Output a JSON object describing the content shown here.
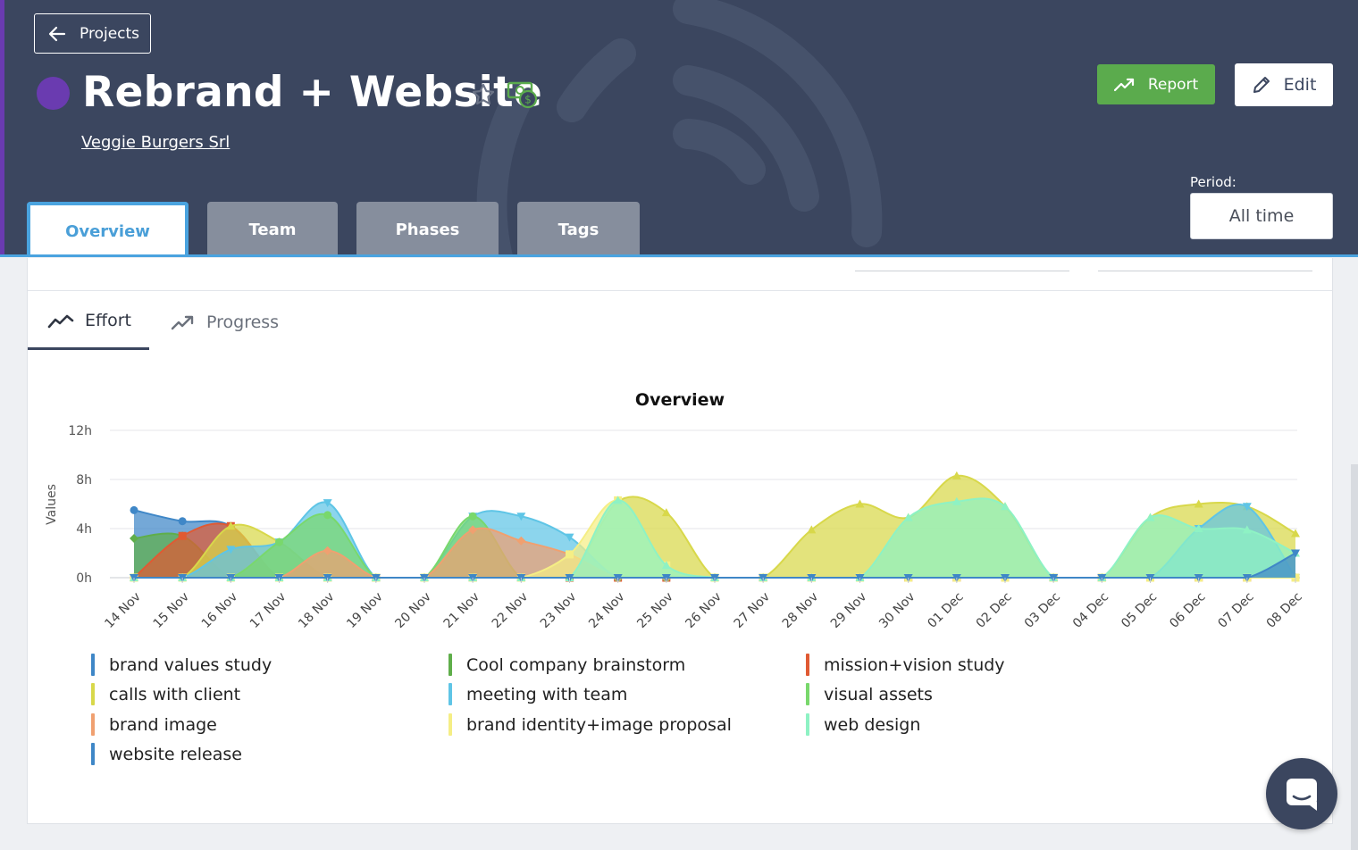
{
  "header": {
    "back_label": "Projects",
    "project_title": "Rebrand + Website",
    "client": "Veggie Burgers Srl",
    "report_label": "Report",
    "edit_label": "Edit",
    "period_label": "Period:",
    "period_value": "All time",
    "project_color": "#6a3bb0"
  },
  "tabs": [
    {
      "label": "Overview",
      "active": true
    },
    {
      "label": "Team",
      "active": false
    },
    {
      "label": "Phases",
      "active": false
    },
    {
      "label": "Tags",
      "active": false
    }
  ],
  "subtabs": [
    {
      "label": "Effort",
      "active": true,
      "icon": "trend-line-icon"
    },
    {
      "label": "Progress",
      "active": false,
      "icon": "trend-arrow-icon"
    }
  ],
  "chart_data": {
    "type": "area",
    "title": "Overview",
    "ylabel": "Values",
    "xlabel": "",
    "y_ticks": [
      "0h",
      "4h",
      "8h",
      "12h"
    ],
    "ylim": [
      0,
      12
    ],
    "categories": [
      "14 Nov",
      "15 Nov",
      "16 Nov",
      "17 Nov",
      "18 Nov",
      "19 Nov",
      "20 Nov",
      "21 Nov",
      "22 Nov",
      "23 Nov",
      "24 Nov",
      "25 Nov",
      "26 Nov",
      "27 Nov",
      "28 Nov",
      "29 Nov",
      "30 Nov",
      "01 Dec",
      "02 Dec",
      "03 Dec",
      "04 Dec",
      "05 Dec",
      "06 Dec",
      "07 Dec",
      "08 Dec"
    ],
    "series": [
      {
        "name": "brand values study",
        "color": "#3f87c7",
        "values": [
          5.5,
          4.6,
          4.2,
          0,
          0,
          0,
          0,
          0,
          0,
          0,
          0,
          0,
          0,
          0,
          0,
          0,
          0,
          0,
          0,
          0,
          0,
          0,
          0,
          0,
          0
        ]
      },
      {
        "name": "Cool company brainstorm",
        "color": "#5fae4a",
        "values": [
          3.2,
          3.4,
          0,
          0,
          0,
          0,
          0,
          0,
          0,
          0,
          0,
          0,
          0,
          0,
          0,
          0,
          0,
          0,
          0,
          0,
          0,
          0,
          0,
          0,
          0
        ]
      },
      {
        "name": "mission+vision study",
        "color": "#e05a33",
        "values": [
          0,
          3.4,
          4.2,
          0,
          0,
          0,
          0,
          0,
          0,
          0,
          0,
          0,
          0,
          0,
          0,
          0,
          0,
          0,
          0,
          0,
          0,
          0,
          0,
          0,
          0
        ]
      },
      {
        "name": "calls with client",
        "color": "#d8d84a",
        "values": [
          0,
          0,
          4.2,
          2.9,
          0,
          0,
          0,
          0,
          0,
          0,
          6.2,
          5.3,
          0,
          0,
          3.9,
          6.0,
          4.9,
          8.3,
          5.8,
          0,
          0,
          4.9,
          6.0,
          5.8,
          3.6
        ]
      },
      {
        "name": "meeting with team",
        "color": "#5fc5e6",
        "values": [
          0,
          0,
          2.3,
          2.9,
          6.1,
          0,
          0,
          5.0,
          5.0,
          3.3,
          0,
          0,
          0,
          0,
          0,
          0,
          0,
          0,
          0,
          0,
          0,
          0,
          4.0,
          5.8,
          0
        ]
      },
      {
        "name": "visual assets",
        "color": "#79d86c",
        "values": [
          0,
          0,
          0,
          2.9,
          5.1,
          0,
          0,
          5.0,
          0,
          0,
          0,
          0,
          0,
          0,
          0,
          0,
          0,
          0,
          0,
          0,
          0,
          0,
          0,
          0,
          0
        ]
      },
      {
        "name": "brand image",
        "color": "#f0a070",
        "values": [
          0,
          0,
          0,
          0,
          2.2,
          0,
          0,
          3.9,
          3.0,
          1.9,
          0,
          0,
          0,
          0,
          0,
          0,
          0,
          0,
          0,
          0,
          0,
          0,
          0,
          0,
          0
        ]
      },
      {
        "name": "brand identity+image proposal",
        "color": "#f5ee85",
        "values": [
          0,
          0,
          0,
          0,
          0,
          0,
          0,
          0,
          0,
          1.9,
          6.3,
          1.0,
          0,
          0,
          0,
          0,
          0,
          0,
          0,
          0,
          0,
          0,
          0,
          0,
          0
        ]
      },
      {
        "name": "web design",
        "color": "#8ef2c4",
        "values": [
          0,
          0,
          0,
          0,
          0,
          0,
          0,
          0,
          0,
          0,
          6.3,
          1.0,
          0,
          0,
          0,
          0,
          4.9,
          6.2,
          5.8,
          0,
          0,
          4.9,
          4.0,
          3.9,
          2.0
        ]
      },
      {
        "name": "website release",
        "color": "#3f87c7",
        "values": [
          0,
          0,
          0,
          0,
          0,
          0,
          0,
          0,
          0,
          0,
          0,
          0,
          0,
          0,
          0,
          0,
          0,
          0,
          0,
          0,
          0,
          0,
          0,
          0,
          2.0
        ]
      }
    ]
  },
  "legend": [
    {
      "label": "brand values study",
      "color": "#3f87c7"
    },
    {
      "label": "Cool company brainstorm",
      "color": "#5fae4a"
    },
    {
      "label": "mission+vision study",
      "color": "#e05a33"
    },
    {
      "label": "calls with client",
      "color": "#d8d84a"
    },
    {
      "label": "meeting with team",
      "color": "#5fc5e6"
    },
    {
      "label": "visual assets",
      "color": "#79d86c"
    },
    {
      "label": "brand image",
      "color": "#f0a070"
    },
    {
      "label": "brand identity+image proposal",
      "color": "#f5ee85"
    },
    {
      "label": "web design",
      "color": "#8ef2c4"
    },
    {
      "label": "website release",
      "color": "#3f87c7"
    }
  ]
}
